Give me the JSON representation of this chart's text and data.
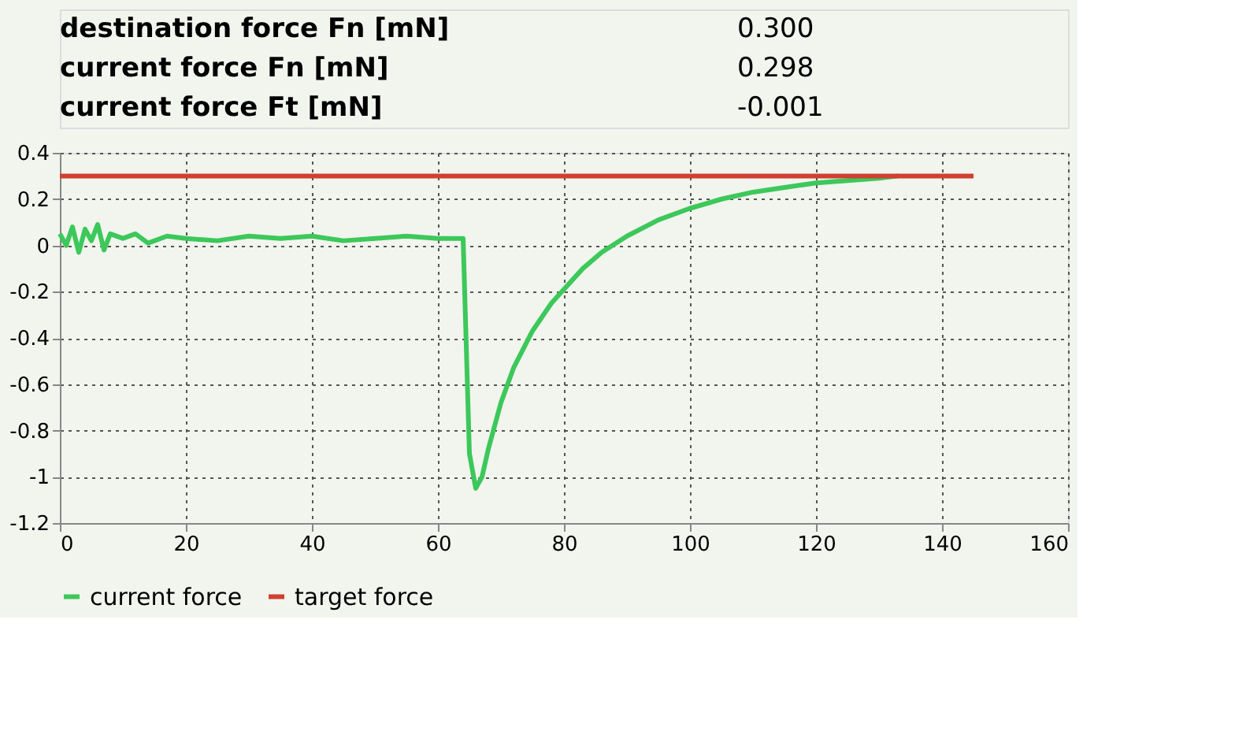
{
  "chart_data": {
    "type": "line",
    "annotations": [
      "destination force Fn [mN]",
      "0.300",
      "current force Fn [mN]",
      "0.298",
      "current force Ft [mN]",
      "-0.001"
    ],
    "xlim": [
      0,
      160
    ],
    "xticks": [
      0,
      20,
      40,
      60,
      80,
      100,
      120,
      140,
      160
    ],
    "ylim": [
      -1.2,
      0.4
    ],
    "yticks": [
      -1.2,
      -1,
      -0.8,
      -0.6,
      -0.4,
      -0.2,
      0,
      0.2,
      0.4
    ],
    "grid": true,
    "legend": "bottom",
    "line_style": "solid",
    "marker": "none",
    "series": [
      {
        "name": "current force",
        "color": "#3cc85a",
        "x": [
          0,
          1,
          2,
          3,
          4,
          5,
          6,
          7,
          8,
          10,
          12,
          14,
          17,
          20,
          25,
          30,
          35,
          40,
          45,
          50,
          55,
          60,
          63,
          64,
          65,
          66,
          67,
          68,
          70,
          72,
          75,
          78,
          80,
          83,
          86,
          90,
          95,
          100,
          105,
          110,
          115,
          120,
          125,
          130,
          133
        ],
        "values": [
          0.05,
          0.0,
          0.08,
          -0.03,
          0.07,
          0.02,
          0.09,
          -0.02,
          0.05,
          0.03,
          0.05,
          0.01,
          0.04,
          0.03,
          0.02,
          0.04,
          0.03,
          0.04,
          0.02,
          0.03,
          0.04,
          0.03,
          0.03,
          0.03,
          -0.9,
          -1.05,
          -1.0,
          -0.88,
          -0.68,
          -0.53,
          -0.37,
          -0.25,
          -0.19,
          -0.1,
          -0.03,
          0.04,
          0.11,
          0.16,
          0.2,
          0.23,
          0.25,
          0.27,
          0.28,
          0.29,
          0.3
        ]
      },
      {
        "name": "target force",
        "color": "#d04030",
        "x": [
          0,
          145
        ],
        "values": [
          0.3,
          0.3
        ]
      }
    ]
  }
}
